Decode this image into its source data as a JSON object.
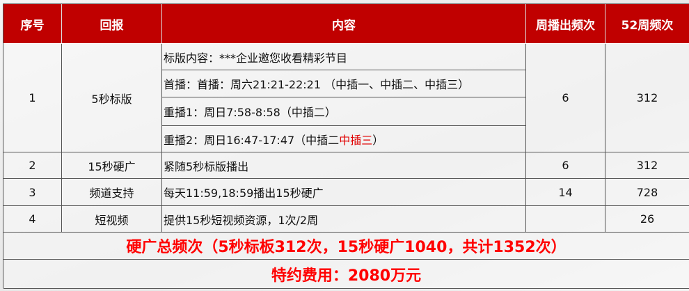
{
  "header": [
    "序号",
    "回报",
    "内容",
    "周播出频次",
    "52周频次"
  ],
  "rows": [
    {
      "no": "1",
      "item": "5秒标版",
      "content": [
        "标版内容：***企业邀您收看精彩节目",
        "首播：首播：周六21:21-22:21 （中插一、中插二、中插三）",
        "重播1：周日7:58-8:58（中插二）",
        "重播2：周日16:47-17:47（中插二 "
      ],
      "content_red": "中插三",
      "content_tail": "）",
      "weekly": "6",
      "total": "312"
    },
    {
      "no": "2",
      "item": "15秒硬广",
      "content": "紧随5秒标版播出",
      "weekly": "6",
      "total": "312"
    },
    {
      "no": "3",
      "item": "频道支持",
      "content": "每天11:59,18:59播出15秒硬广",
      "weekly": "14",
      "total": "728"
    },
    {
      "no": "4",
      "item": "短视频",
      "content": "提供15秒短视频资源，1次/2周",
      "weekly": "",
      "total": "26"
    }
  ],
  "summary": "硬广总频次（5秒标板312次，15秒硬广1040，共计1352次）",
  "fee": "特约费用：2080万元",
  "colors": {
    "header": "#c00000",
    "highlight": "#ff0000"
  }
}
